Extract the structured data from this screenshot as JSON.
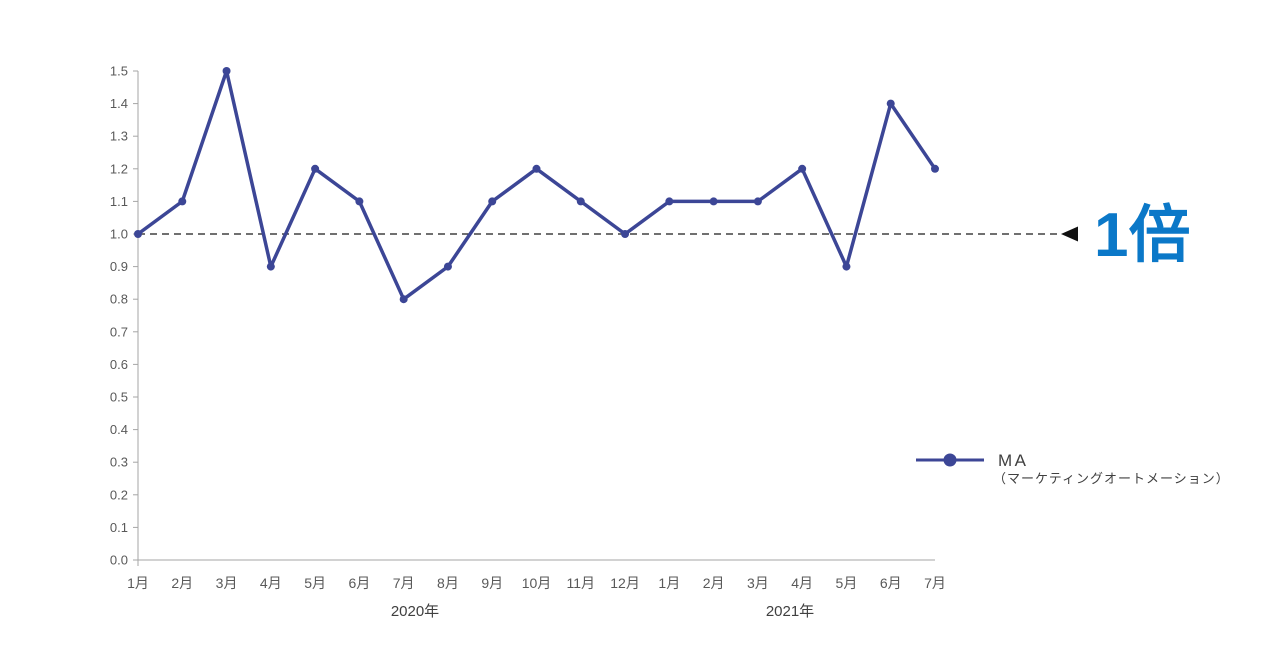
{
  "chart_data": {
    "type": "line",
    "categories": [
      "1月",
      "2月",
      "3月",
      "4月",
      "5月",
      "6月",
      "7月",
      "8月",
      "9月",
      "10月",
      "11月",
      "12月",
      "1月",
      "2月",
      "3月",
      "4月",
      "5月",
      "6月",
      "7月"
    ],
    "category_groups": [
      {
        "label": "2020年",
        "count": 12
      },
      {
        "label": "2021年",
        "count": 7
      }
    ],
    "series": [
      {
        "name": "MA（マーケティングオートメーション）",
        "values": [
          1.0,
          1.1,
          1.5,
          0.9,
          1.2,
          1.1,
          0.8,
          0.9,
          1.1,
          1.2,
          1.1,
          1.0,
          1.1,
          1.1,
          1.1,
          1.2,
          0.9,
          1.4,
          1.2
        ]
      }
    ],
    "ylim": [
      0.0,
      1.5
    ],
    "ytick_step": 0.1,
    "ytick_labels": [
      "0.0",
      "0.1",
      "0.2",
      "0.3",
      "0.4",
      "0.5",
      "0.6",
      "0.7",
      "0.8",
      "0.9",
      "1.0",
      "1.1",
      "1.2",
      "1.3",
      "1.4",
      "1.5"
    ],
    "grid": false,
    "legend": {
      "position": "right-middle",
      "title": "MA",
      "subtitle": "（マーケティングオートメーション）"
    },
    "reference_line": {
      "value": 1.0,
      "style": "dashed",
      "arrow": "left-triangle",
      "label": "1倍"
    },
    "colors": {
      "series": "#3C4696",
      "reference_line": "#1A1A1A",
      "reference_arrow": "#111111",
      "reference_label": "#0B78C8",
      "axis_line": "#A6A6A6",
      "tick_label": "#595959",
      "legend_text": "#404040"
    }
  }
}
